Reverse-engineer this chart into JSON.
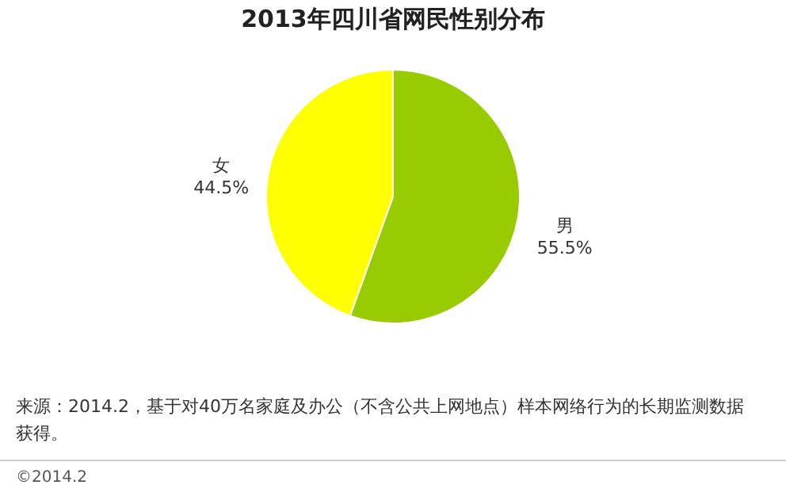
{
  "chart_data": {
    "type": "pie",
    "title": "2013年四川省网民性别分布",
    "categories": [
      "男",
      "女"
    ],
    "values": [
      55.5,
      44.5
    ],
    "value_labels": [
      "55.5%",
      "44.5%"
    ],
    "colors": [
      "#99cc00",
      "#ffff00"
    ],
    "legend": false,
    "annotations": [
      "来源：2014.2，基于对40万名家庭及办公（不含公共上网地点）样本网络行为的长期监测数据获得。",
      "©2014.2"
    ]
  }
}
